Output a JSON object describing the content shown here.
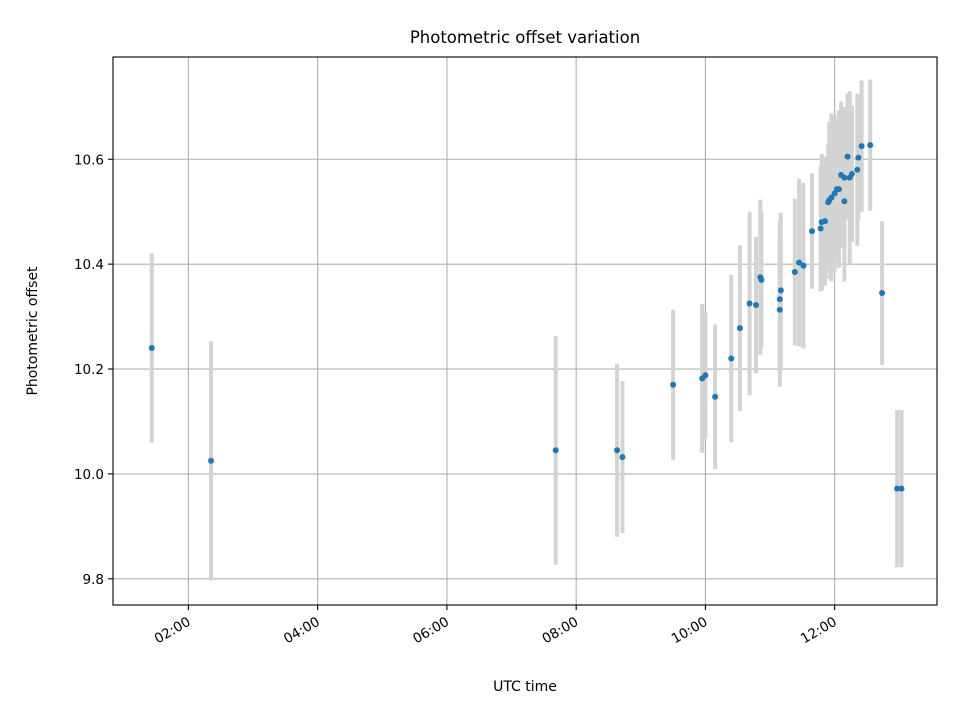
{
  "chart_data": {
    "type": "scatter",
    "title": "Photometric offset variation",
    "xlabel": "UTC time",
    "ylabel": "Photometric offset",
    "x_tick_labels": [
      "02:00",
      "04:00",
      "06:00",
      "08:00",
      "10:00",
      "12:00"
    ],
    "x_ticks": [
      "02:00",
      "04:00",
      "06:00",
      "08:00",
      "10:00",
      "12:00"
    ],
    "y_ticks": [
      9.8,
      10.0,
      10.2,
      10.4,
      10.6
    ],
    "y_tick_labels": [
      "9.8",
      "10.0",
      "10.2",
      "10.4",
      "10.6"
    ],
    "xlim": [
      "00:50",
      "13:35"
    ],
    "ylim": [
      9.75,
      10.795
    ],
    "grid": true,
    "point_color": "#1f77b4",
    "errorbar_color": "#d3d3d3",
    "series": [
      {
        "x": [
          "01:26",
          "02:21",
          "07:41",
          "08:38",
          "08:43",
          "09:30",
          "09:57",
          "10:00",
          "10:09",
          "10:24",
          "10:32",
          "10:41",
          "10:47",
          "10:51",
          "10:52",
          "11:09",
          "11:09",
          "11:10",
          "11:23",
          "11:27",
          "11:31",
          "11:39",
          "11:47",
          "11:48",
          "11:51",
          "11:54",
          "11:55",
          "11:57",
          "12:00",
          "12:02",
          "12:04",
          "12:06",
          "12:09",
          "12:09",
          "12:12",
          "12:14",
          "12:16",
          "12:21",
          "12:22",
          "12:25",
          "12:33",
          "12:44",
          "12:58",
          "13:02"
        ],
        "y": [
          10.24,
          10.025,
          10.045,
          10.045,
          10.032,
          10.17,
          10.182,
          10.188,
          10.147,
          10.22,
          10.278,
          10.325,
          10.322,
          10.375,
          10.37,
          10.313,
          10.333,
          10.35,
          10.385,
          10.403,
          10.397,
          10.463,
          10.468,
          10.48,
          10.482,
          10.518,
          10.522,
          10.527,
          10.535,
          10.543,
          10.543,
          10.57,
          10.565,
          10.52,
          10.605,
          10.565,
          10.572,
          10.58,
          10.603,
          10.625,
          10.627,
          10.345,
          9.972,
          9.972
        ],
        "err": [
          0.18,
          0.228,
          0.218,
          0.165,
          0.145,
          0.143,
          0.142,
          0.12,
          0.138,
          0.16,
          0.158,
          0.175,
          0.13,
          0.148,
          0.13,
          0.147,
          0.15,
          0.148,
          0.14,
          0.16,
          0.158,
          0.11,
          0.12,
          0.13,
          0.123,
          0.11,
          0.15,
          0.16,
          0.15,
          0.13,
          0.15,
          0.14,
          0.135,
          0.153,
          0.12,
          0.165,
          0.13,
          0.145,
          0.12,
          0.125,
          0.125,
          0.137,
          0.15,
          0.15
        ]
      }
    ]
  }
}
